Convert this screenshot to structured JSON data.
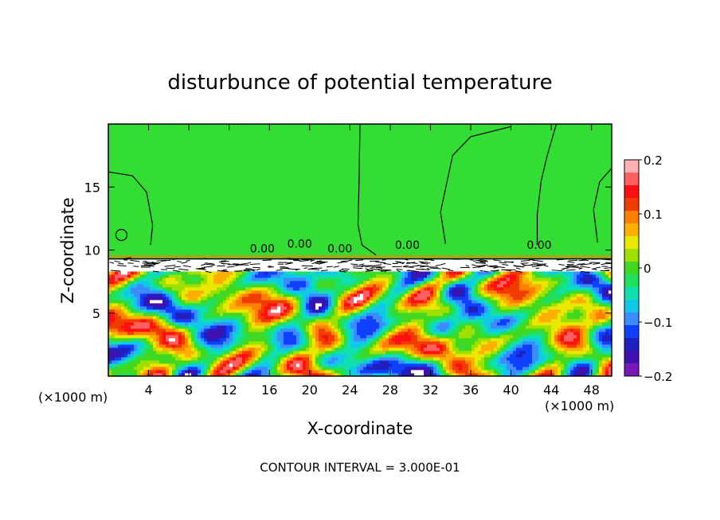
{
  "chart_data": {
    "type": "heatmap",
    "title": "disturbunce of potential temperature",
    "xlabel": "X-coordinate",
    "ylabel": "Z-coordinate",
    "x_unit": "(×1000 m)",
    "y_unit": "(×1000 m)",
    "xlim": [
      0,
      50
    ],
    "ylim": [
      0,
      20
    ],
    "x_ticks": [
      4,
      8,
      12,
      16,
      20,
      24,
      28,
      32,
      36,
      40,
      44,
      48
    ],
    "y_ticks": [
      5,
      10,
      15
    ],
    "contour_label": "0.00",
    "contour_interval": "CONTOUR INTERVAL = 3.000E-01",
    "colorbar": {
      "range": [
        -0.2,
        0.2
      ],
      "tick_values": [
        0.2,
        0.1,
        0,
        -0.1,
        -0.2
      ],
      "tick_labels": [
        "0.2",
        "0.1",
        "0",
        "−0.1",
        "−0.2"
      ],
      "colors": [
        "#ffb0b0",
        "#ff6060",
        "#ff1010",
        "#f03c00",
        "#ff8000",
        "#ffb000",
        "#e8e800",
        "#a0e000",
        "#40d820",
        "#20e060",
        "#10e0b0",
        "#10c8e8",
        "#3c8cff",
        "#1040ff",
        "#2020c0",
        "#4010b0",
        "#7818b8"
      ]
    }
  }
}
